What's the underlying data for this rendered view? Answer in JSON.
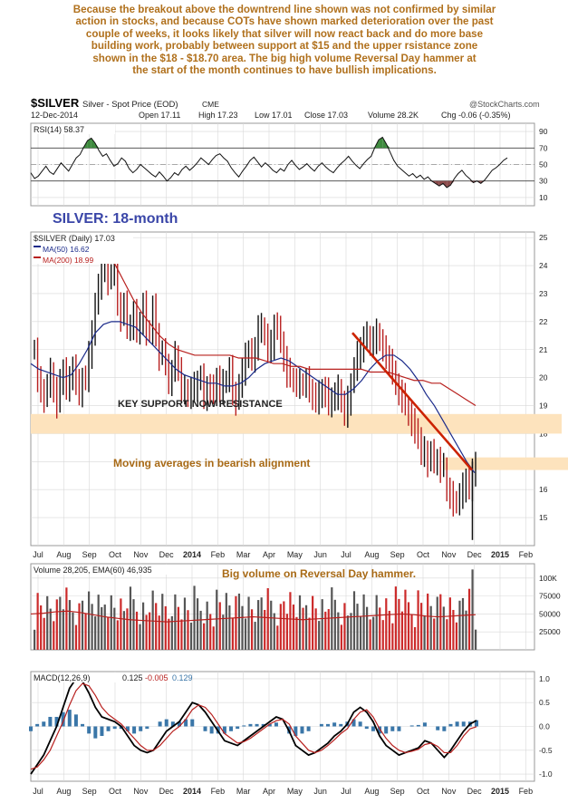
{
  "commentary_lines": [
    "Because the breakout above the downtrend line shown was not confirmed by similar",
    "action in stocks, and because COTs have shown marked deterioration over the past",
    "couple of weeks, it looks likely that silver will now react back and do more base",
    "building work, probably between support at $15 and the upper rsistance zone",
    "shown in the $18 - $18.70 area. The big high volume Reversal Day hammer at",
    "the start of the month continues to have bullish implications."
  ],
  "chart_data": {
    "type": "line",
    "header": {
      "symbol": "$SILVER",
      "description": "Silver - Spot Price (EOD)",
      "exchange": "CME",
      "source": "@StockCharts.com",
      "date": "12-Dec-2014",
      "open": "Open 17.11",
      "high": "High 17.23",
      "low": "Low 17.01",
      "close": "Close 17.03",
      "volume": "Volume 28.2K",
      "change": "Chg -0.06 (-0.35%)"
    },
    "rsi": {
      "label": "RSI(14) 58.37",
      "ylim": [
        0,
        100
      ],
      "ticks": [
        10,
        30,
        50,
        70,
        90
      ],
      "bands": [
        30,
        70
      ],
      "values": [
        40,
        33,
        36,
        42,
        48,
        41,
        38,
        45,
        52,
        47,
        42,
        50,
        58,
        62,
        71,
        79,
        82,
        76,
        67,
        60,
        63,
        55,
        48,
        51,
        58,
        54,
        45,
        40,
        44,
        50,
        46,
        42,
        38,
        35,
        41,
        36,
        30,
        34,
        40,
        37,
        44,
        48,
        43,
        47,
        52,
        58,
        54,
        50,
        56,
        61,
        63,
        58,
        54,
        46,
        40,
        35,
        42,
        48,
        55,
        59,
        53,
        47,
        52,
        48,
        43,
        40,
        45,
        42,
        50,
        55,
        49,
        44,
        47,
        51,
        46,
        42,
        48,
        52,
        47,
        43,
        40,
        46,
        51,
        55,
        60,
        54,
        49,
        45,
        51,
        56,
        60,
        71,
        80,
        83,
        75,
        65,
        55,
        48,
        44,
        40,
        36,
        39,
        34,
        37,
        32,
        35,
        30,
        27,
        24,
        27,
        22,
        25,
        33,
        39,
        43,
        37,
        33,
        28,
        30,
        27,
        31,
        37,
        43,
        46,
        50,
        55,
        58
      ]
    },
    "price": {
      "label": "$SILVER (Daily) 17.03",
      "ma50_label": "MA(50) 16.62",
      "ma200_label": "MA(200) 18.99",
      "title": "SILVER: 18-month",
      "ylim": [
        14,
        25.2
      ],
      "ticks": [
        15,
        16,
        17,
        18,
        19,
        20,
        21,
        22,
        23,
        24,
        25
      ],
      "close": [
        21.0,
        19.9,
        19.6,
        19.3,
        19.7,
        20.2,
        19.6,
        19.1,
        19.8,
        20.3,
        19.7,
        19.9,
        20.4,
        19.8,
        19.5,
        20.0,
        19.9,
        20.8,
        21.7,
        22.6,
        23.2,
        23.9,
        24.1,
        23.5,
        23.7,
        23.8,
        22.7,
        22.2,
        22.6,
        21.8,
        21.9,
        22.3,
        21.6,
        22.0,
        22.6,
        21.7,
        21.6,
        22.5,
        21.6,
        20.8,
        20.9,
        20.5,
        19.9,
        20.2,
        20.8,
        20.3,
        19.6,
        19.6,
        19.3,
        19.6,
        19.7,
        19.9,
        20.0,
        19.3,
        19.7,
        19.6,
        19.4,
        20.0,
        19.6,
        19.8,
        19.9,
        20.3,
        19.5,
        19.2,
        19.7,
        20.2,
        20.9,
        20.9,
        20.6,
        21.1,
        21.8,
        21.8,
        21.5,
        21.0,
        21.2,
        21.9,
        21.7,
        21.3,
        20.7,
        20.2,
        20.0,
        19.9,
        19.8,
        19.8,
        19.7,
        19.9,
        19.6,
        19.4,
        19.1,
        19.4,
        19.6,
        19.5,
        19.0,
        19.3,
        19.4,
        19.6,
        19.1,
        18.7,
        19.2,
        19.8,
        20.3,
        20.8,
        21.1,
        21.4,
        21.5,
        21.2,
        21.4,
        21.6,
        21.3,
        21.0,
        20.8,
        20.6,
        20.1,
        19.8,
        19.5,
        19.3,
        19.0,
        18.7,
        18.4,
        18.2,
        17.8,
        17.3,
        17.4,
        17.0,
        17.3,
        17.0,
        17.1,
        16.8,
        16.8,
        16.0,
        15.8,
        15.6,
        15.5,
        15.8,
        16.1,
        16.4,
        16.0,
        16.6,
        17.0
      ],
      "lows": [
        [
          176,
          14.2
        ]
      ],
      "ma50": [
        20.5,
        20.3,
        20.2,
        20.1,
        20.0,
        20.1,
        20.5,
        21.0,
        21.6,
        21.9,
        22.0,
        22.0,
        21.9,
        21.8,
        21.5,
        21.2,
        20.9,
        20.6,
        20.3,
        20.1,
        20.0,
        19.9,
        19.8,
        19.8,
        19.7,
        19.7,
        19.8,
        20.0,
        20.3,
        20.5,
        20.6,
        20.7,
        20.6,
        20.4,
        20.2,
        20.0,
        19.8,
        19.6,
        19.4,
        19.4,
        19.6,
        19.9,
        20.3,
        20.6,
        20.8,
        20.8,
        20.6,
        20.3,
        19.9,
        19.4,
        19.0,
        18.5,
        18.0,
        17.5,
        17.0,
        16.6
      ],
      "ma200": [
        24.6,
        24.0,
        23.4,
        22.8,
        22.3,
        21.9,
        21.5,
        21.2,
        21.0,
        20.9,
        20.8,
        20.8,
        20.8,
        20.8,
        20.8,
        20.7,
        20.7,
        20.7,
        20.6,
        20.5,
        20.5,
        20.4,
        20.4,
        20.3,
        20.3,
        20.3,
        20.3,
        20.3,
        20.3,
        20.3,
        20.2,
        20.2,
        20.2,
        20.1,
        20.0,
        19.9,
        19.9,
        19.8,
        19.8,
        19.6,
        19.4,
        19.2,
        19.0
      ],
      "support_zone": [
        18.0,
        18.7
      ],
      "upper_zone": [
        16.7,
        17.15
      ],
      "trendline": [
        [
          21.6
        ],
        [
          16.7
        ]
      ],
      "annotations": {
        "support": "KEY SUPPORT NOW RESISTANCE",
        "ma": "Moving averages in bearish alignment"
      }
    },
    "volume": {
      "label": "Volume 28,205, EMA(60) 46,935",
      "note": "Big volume on Reversal Day hammer.",
      "ylim": [
        0,
        120000
      ],
      "ticks": [
        "25000",
        "50000",
        "75000",
        "100K"
      ],
      "tick_values": [
        25000,
        50000,
        75000,
        100000
      ],
      "ema": [
        50000,
        51000,
        53000,
        54000,
        52000,
        49000,
        46000,
        44000,
        42000,
        41000,
        40000,
        39000,
        40000,
        41000,
        42000,
        43000,
        44000,
        45000,
        46000,
        45000,
        44000,
        43000,
        42000,
        43000,
        44000,
        45000,
        46000,
        47000,
        48000,
        49000,
        50000,
        49000,
        47000,
        46000,
        47000,
        48000,
        49000
      ]
    },
    "macd": {
      "label_prefix": "MACD(12,26,9)",
      "macd_value": "0.125",
      "signal_value": "-0.005",
      "hist_value": "0.129",
      "ylim": [
        -1.15,
        1.15
      ],
      "ticks": [
        "1.0",
        "0.5",
        "0.0",
        "-0.5",
        "-1.0"
      ],
      "tick_values": [
        1.0,
        0.5,
        0.0,
        -0.5,
        -1.0
      ],
      "macd": [
        -1.0,
        -0.8,
        -0.6,
        -0.3,
        0.0,
        0.4,
        0.8,
        1.0,
        0.95,
        0.7,
        0.4,
        0.2,
        0.15,
        0.1,
        0.0,
        -0.2,
        -0.4,
        -0.5,
        -0.55,
        -0.5,
        -0.3,
        -0.1,
        0.0,
        0.1,
        0.3,
        0.5,
        0.45,
        0.3,
        0.1,
        -0.1,
        -0.3,
        -0.35,
        -0.4,
        -0.3,
        -0.2,
        -0.1,
        0.0,
        0.1,
        0.2,
        0.15,
        -0.1,
        -0.4,
        -0.5,
        -0.6,
        -0.55,
        -0.45,
        -0.35,
        -0.2,
        -0.1,
        0.05,
        0.3,
        0.4,
        0.3,
        0.1,
        -0.2,
        -0.4,
        -0.5,
        -0.6,
        -0.55,
        -0.5,
        -0.45,
        -0.3,
        -0.35,
        -0.5,
        -0.65,
        -0.5,
        -0.3,
        -0.1,
        0.05,
        0.125
      ],
      "signal": [
        -0.9,
        -0.85,
        -0.7,
        -0.5,
        -0.2,
        0.1,
        0.45,
        0.75,
        0.9,
        0.85,
        0.65,
        0.4,
        0.25,
        0.15,
        0.05,
        -0.1,
        -0.25,
        -0.4,
        -0.5,
        -0.5,
        -0.4,
        -0.25,
        -0.1,
        0.0,
        0.15,
        0.35,
        0.45,
        0.4,
        0.25,
        0.05,
        -0.15,
        -0.25,
        -0.35,
        -0.32,
        -0.25,
        -0.15,
        -0.05,
        0.05,
        0.12,
        0.15,
        0.05,
        -0.2,
        -0.35,
        -0.5,
        -0.55,
        -0.5,
        -0.4,
        -0.28,
        -0.15,
        -0.05,
        0.15,
        0.3,
        0.35,
        0.2,
        -0.05,
        -0.25,
        -0.4,
        -0.5,
        -0.55,
        -0.52,
        -0.48,
        -0.38,
        -0.35,
        -0.42,
        -0.55,
        -0.55,
        -0.4,
        -0.2,
        -0.05,
        -0.005
      ]
    },
    "x_labels": [
      "Jul",
      "Aug",
      "Sep",
      "Oct",
      "Nov",
      "Dec",
      "2014",
      "Feb",
      "Mar",
      "Apr",
      "May",
      "Jun",
      "Jul",
      "Aug",
      "Sep",
      "Oct",
      "Nov",
      "Dec",
      "2015",
      "Feb"
    ]
  },
  "colors": {
    "commentary": "#b0701c",
    "grid": "#d8d8d8",
    "ma50": "#1a2a8a",
    "ma200": "#b8201e",
    "price_down": "#b82020",
    "price_up": "#111111",
    "zone": "#fde3bd",
    "trendline": "#cc2200",
    "title": "#3a46a8",
    "annotation": "#a86a16",
    "vol_up": "#555555",
    "vol_down": "#cc2a2a",
    "rsi_fill_over": "#3d8a3d",
    "rsi_fill_under": "#8a4a4a",
    "hist": "#3a76a8"
  }
}
